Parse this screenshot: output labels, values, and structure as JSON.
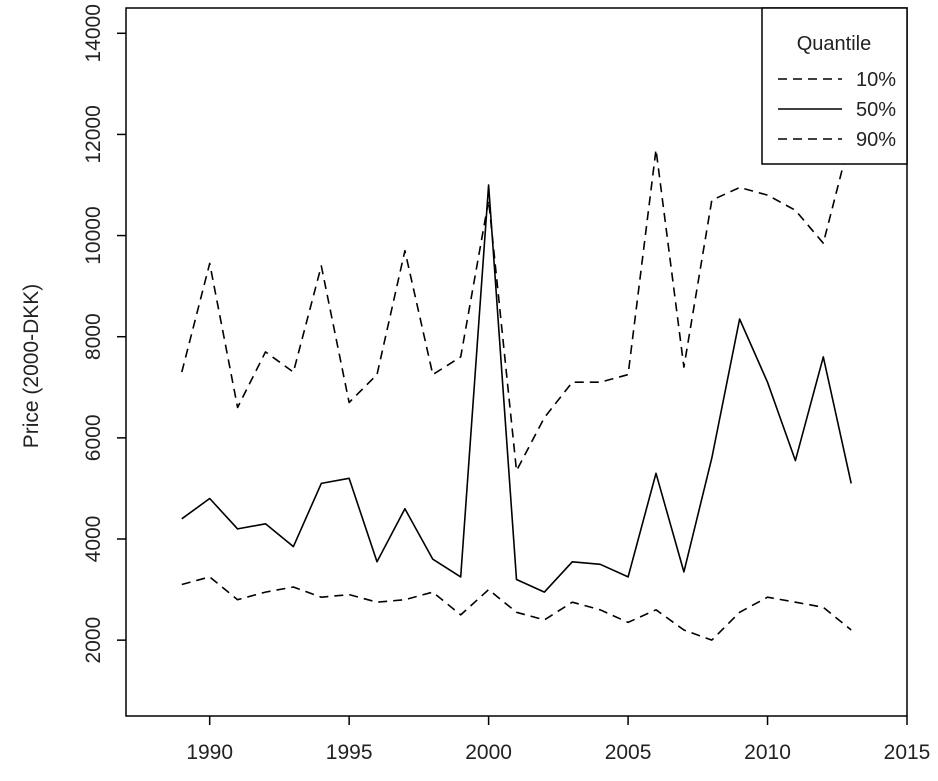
{
  "chart_data": {
    "type": "line",
    "title": "",
    "xlabel": "",
    "ylabel": "Price (2000-DKK)",
    "xlim": [
      1987,
      2015
    ],
    "ylim": [
      500,
      14500
    ],
    "x_ticks": [
      1990,
      1995,
      2000,
      2005,
      2010,
      2015
    ],
    "x_tick_labels": [
      "1990",
      "1995",
      "2000",
      "2005",
      "2010",
      "2015"
    ],
    "y_ticks": [
      2000,
      4000,
      6000,
      8000,
      10000,
      12000,
      14000
    ],
    "y_tick_labels": [
      "2000",
      "4000",
      "6000",
      "8000",
      "10000",
      "12000",
      "14000"
    ],
    "grid": false,
    "legend": {
      "title": "Quantile",
      "position": "top-right"
    },
    "x": [
      1989,
      1990,
      1991,
      1992,
      1993,
      1994,
      1995,
      1996,
      1997,
      1998,
      1999,
      2000,
      2001,
      2002,
      2003,
      2004,
      2005,
      2006,
      2007,
      2008,
      2009,
      2010,
      2011,
      2012,
      2013
    ],
    "series": [
      {
        "name": "10%",
        "line_style": "dashed",
        "values": [
          3100,
          3250,
          2800,
          2950,
          3050,
          2850,
          2900,
          2750,
          2800,
          2950,
          2500,
          3000,
          2550,
          2400,
          2750,
          2600,
          2350,
          2600,
          2200,
          2000,
          2550,
          2850,
          2750,
          2650,
          2200
        ]
      },
      {
        "name": "50%",
        "line_style": "solid",
        "values": [
          4400,
          4800,
          4200,
          4300,
          3850,
          5100,
          5200,
          3550,
          4600,
          3600,
          3250,
          11000,
          3200,
          2950,
          3550,
          3500,
          3250,
          5300,
          3350,
          5600,
          8350,
          7100,
          5550,
          7600,
          5100
        ]
      },
      {
        "name": "90%",
        "line_style": "dashed",
        "values": [
          7300,
          9450,
          6600,
          7700,
          7300,
          9400,
          6700,
          7250,
          9700,
          7250,
          7600,
          10700,
          5350,
          6400,
          7100,
          7100,
          7250,
          11700,
          7400,
          10700,
          10950,
          10800,
          10500,
          9850,
          12000
        ]
      }
    ]
  }
}
